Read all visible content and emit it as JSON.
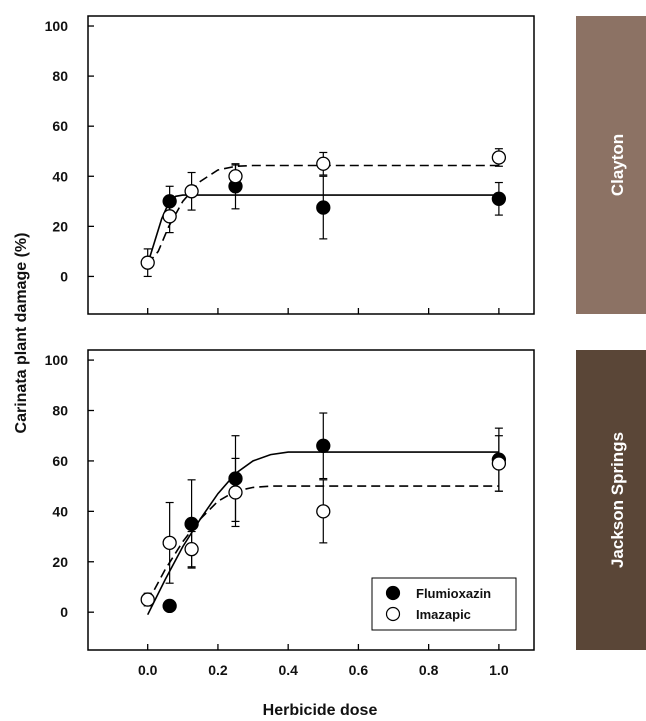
{
  "figure": {
    "ylabel": "Carinata plant damage (%)",
    "xlabel": "Herbicide dose"
  },
  "legend": {
    "placement": "bottom-right of lower panel",
    "entries": [
      {
        "name": "Flumioxazin",
        "marker": "filled-circle",
        "line": "solid"
      },
      {
        "name": "Imazapic",
        "marker": "open-circle",
        "line": "dashed"
      }
    ]
  },
  "colors": {
    "clayton_strip": "#8c7264",
    "jackson_strip": "#5a4637",
    "marker_fill_flumioxazin": "#000000",
    "marker_fill_imazapic": "#ffffff"
  },
  "chart_data": [
    {
      "type": "scatter",
      "panel": "Clayton",
      "strip_label": "Clayton",
      "xlim": [
        -0.17,
        1.1
      ],
      "ylim": [
        -15,
        104
      ],
      "yticks": [
        0,
        20,
        40,
        60,
        80,
        100
      ],
      "xticks": [
        0.0,
        0.2,
        0.4,
        0.6,
        0.8,
        1.0
      ],
      "show_x_tick_labels": false,
      "grid": false,
      "series": [
        {
          "name": "Flumioxazin",
          "x": [
            0.0625,
            0.25,
            0.5,
            1.0
          ],
          "y": [
            30,
            36,
            27.5,
            31
          ],
          "err": [
            6,
            9,
            12.5,
            6.5
          ],
          "fit": {
            "x": [
              0,
              0.02,
              0.04,
              0.06,
              0.08,
              0.1,
              1.0
            ],
            "y": [
              5,
              14,
              23,
              29.5,
              32,
              32.5,
              32.5
            ]
          }
        },
        {
          "name": "Imazapic",
          "x": [
            0,
            0.0625,
            0.125,
            0.25,
            0.5,
            1.0
          ],
          "y": [
            5.5,
            24,
            34,
            40,
            45,
            47.5
          ],
          "err": [
            5.5,
            6.5,
            7.5,
            4.5,
            4.5,
            3.5
          ],
          "fit": {
            "x": [
              0,
              0.03,
              0.06,
              0.1,
              0.15,
              0.2,
              0.25,
              0.3,
              1.0
            ],
            "y": [
              5,
              10,
              20,
              30,
              38,
              42.5,
              44,
              44.3,
              44.3
            ]
          }
        }
      ]
    },
    {
      "type": "scatter",
      "panel": "Jackson Springs",
      "strip_label": "Jackson Springs",
      "xlim": [
        -0.17,
        1.1
      ],
      "ylim": [
        -15,
        104
      ],
      "yticks": [
        0,
        20,
        40,
        60,
        80,
        100
      ],
      "xticks": [
        0.0,
        0.2,
        0.4,
        0.6,
        0.8,
        1.0
      ],
      "xtick_labels": [
        "0.0",
        "0.2",
        "0.4",
        "0.6",
        "0.8",
        "1.0"
      ],
      "show_x_tick_labels": true,
      "grid": false,
      "series": [
        {
          "name": "Flumioxazin",
          "x": [
            0.0625,
            0.125,
            0.25,
            0.5,
            1.0
          ],
          "y": [
            2.5,
            35,
            53,
            66,
            60.5
          ],
          "err": [
            1.5,
            17.5,
            17,
            13,
            12.5
          ],
          "fit": {
            "x": [
              0,
              0.05,
              0.1,
              0.15,
              0.2,
              0.25,
              0.3,
              0.35,
              0.4,
              0.45,
              1.0
            ],
            "y": [
              -1,
              13,
              26,
              37,
              47,
              55,
              60,
              62.5,
              63.5,
              63.5,
              63.5
            ]
          }
        },
        {
          "name": "Imazapic",
          "x": [
            0,
            0.0625,
            0.125,
            0.25,
            0.5,
            1.0
          ],
          "y": [
            5,
            27.5,
            25,
            47.5,
            40,
            59
          ],
          "err": [
            2.5,
            16,
            7,
            13.5,
            12.5,
            11
          ],
          "fit": {
            "x": [
              0,
              0.05,
              0.1,
              0.15,
              0.2,
              0.25,
              0.3,
              0.35,
              1.0
            ],
            "y": [
              4,
              17,
              28,
              37,
              44,
              48,
              49.5,
              50,
              50
            ]
          }
        }
      ]
    }
  ]
}
